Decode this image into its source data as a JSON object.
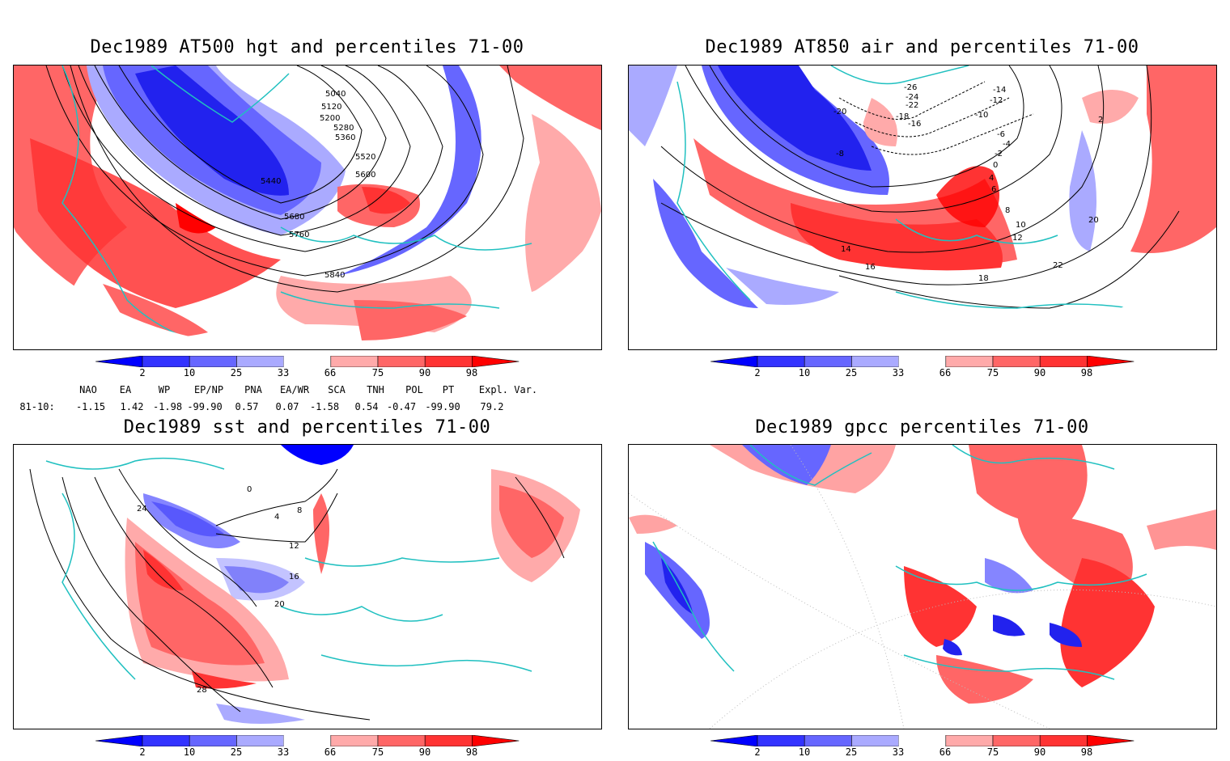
{
  "panels": [
    {
      "id": "hgt",
      "title": "Dec1989 AT500 hgt and percentiles 71-00",
      "contour_labels": [
        "5040",
        "5120",
        "5200",
        "5280",
        "5360",
        "5440",
        "5520",
        "5600",
        "5680",
        "5760",
        "5840"
      ]
    },
    {
      "id": "air",
      "title": "Dec1989 AT850 air and percentiles 71-00",
      "contour_labels": [
        "-26",
        "-24",
        "-22",
        "-20",
        "-18",
        "-16",
        "-14",
        "-12",
        "-10",
        "-8",
        "-6",
        "-4",
        "-2",
        "0",
        "2",
        "4",
        "6",
        "8",
        "10",
        "12",
        "14",
        "16",
        "18",
        "20",
        "22"
      ]
    },
    {
      "id": "sst",
      "title": "Dec1989 sst and percentiles 71-00",
      "contour_labels": [
        "0",
        "4",
        "8",
        "12",
        "16",
        "20",
        "24",
        "28"
      ]
    },
    {
      "id": "gpcc",
      "title": "Dec1989 gpcc percentiles 71-00",
      "contour_labels": []
    }
  ],
  "colorbar": {
    "labels": [
      "2",
      "10",
      "25",
      "33",
      "66",
      "75",
      "90",
      "98"
    ],
    "colors": [
      "#0000ff",
      "#3333ff",
      "#6666ff",
      "#aaaaff",
      "#ffffff",
      "#ffaaaa",
      "#ff6666",
      "#ff3333",
      "#ff0000"
    ]
  },
  "indices": {
    "headers": [
      "NAO",
      "EA",
      "WP",
      "EP/NP",
      "PNA",
      "EA/WR",
      "SCA",
      "TNH",
      "POL",
      "PT",
      "Expl. Var."
    ],
    "row_label": "81-10:",
    "values": [
      "-1.15",
      "1.42",
      "-1.98",
      "-99.90",
      "0.57",
      "0.07",
      "-1.58",
      "0.54",
      "-0.47",
      "-99.90",
      "79.2"
    ]
  }
}
